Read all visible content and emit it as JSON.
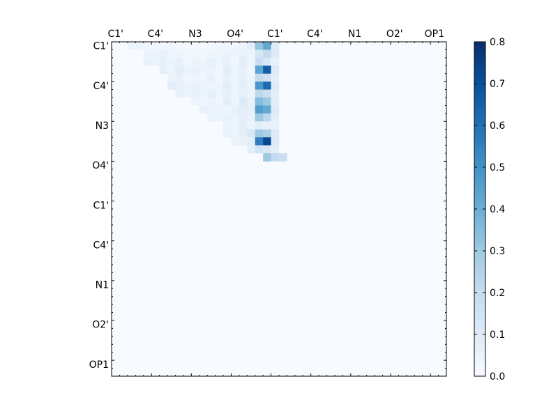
{
  "chart_data": {
    "type": "heatmap",
    "title": "",
    "xlabel": "",
    "ylabel": "",
    "x_tick_labels": [
      "C1'",
      "C4'",
      "N3",
      "O4'",
      "C1'",
      "C4'",
      "N1",
      "O2'",
      "OP1"
    ],
    "y_tick_labels": [
      "C1'",
      "C4'",
      "N3",
      "O4'",
      "C1'",
      "C4'",
      "N1",
      "O2'",
      "OP1"
    ],
    "matrix_size": 42,
    "label_every": 5,
    "colormap": "Blues",
    "colorbar": {
      "vmin": 0.0,
      "vmax": 0.8,
      "ticks": [
        "0.0",
        "0.1",
        "0.2",
        "0.3",
        "0.4",
        "0.5",
        "0.6",
        "0.7",
        "0.8"
      ],
      "placement": "right"
    },
    "grid": false,
    "cells": [
      [
        0,
        2,
        0.04
      ],
      [
        0,
        3,
        0.04
      ],
      [
        0,
        4,
        0.03
      ],
      [
        0,
        5,
        0.03
      ],
      [
        0,
        6,
        0.03
      ],
      [
        0,
        7,
        0.03
      ],
      [
        0,
        8,
        0.02
      ],
      [
        0,
        9,
        0.02
      ],
      [
        0,
        10,
        0.02
      ],
      [
        0,
        11,
        0.02
      ],
      [
        0,
        12,
        0.02
      ],
      [
        0,
        13,
        0.03
      ],
      [
        0,
        14,
        0.03
      ],
      [
        0,
        15,
        0.03
      ],
      [
        0,
        16,
        0.05
      ],
      [
        0,
        17,
        0.08
      ],
      [
        0,
        18,
        0.32
      ],
      [
        0,
        19,
        0.42
      ],
      [
        0,
        20,
        0.1
      ],
      [
        1,
        4,
        0.05
      ],
      [
        1,
        5,
        0.04
      ],
      [
        1,
        6,
        0.06
      ],
      [
        1,
        7,
        0.03
      ],
      [
        1,
        8,
        0.04
      ],
      [
        1,
        9,
        0.02
      ],
      [
        1,
        10,
        0.03
      ],
      [
        1,
        11,
        0.02
      ],
      [
        1,
        12,
        0.04
      ],
      [
        1,
        13,
        0.03
      ],
      [
        1,
        14,
        0.05
      ],
      [
        1,
        15,
        0.04
      ],
      [
        1,
        16,
        0.06
      ],
      [
        1,
        17,
        0.05
      ],
      [
        1,
        18,
        0.14
      ],
      [
        1,
        19,
        0.2
      ],
      [
        1,
        20,
        0.1
      ],
      [
        2,
        4,
        0.06
      ],
      [
        2,
        5,
        0.05
      ],
      [
        2,
        6,
        0.07
      ],
      [
        2,
        7,
        0.04
      ],
      [
        2,
        8,
        0.06
      ],
      [
        2,
        9,
        0.03
      ],
      [
        2,
        10,
        0.05
      ],
      [
        2,
        11,
        0.03
      ],
      [
        2,
        12,
        0.07
      ],
      [
        2,
        13,
        0.04
      ],
      [
        2,
        14,
        0.06
      ],
      [
        2,
        15,
        0.03
      ],
      [
        2,
        16,
        0.08
      ],
      [
        2,
        17,
        0.04
      ],
      [
        2,
        18,
        0.18
      ],
      [
        2,
        19,
        0.12
      ],
      [
        2,
        20,
        0.06
      ],
      [
        3,
        6,
        0.07
      ],
      [
        3,
        7,
        0.04
      ],
      [
        3,
        8,
        0.08
      ],
      [
        3,
        9,
        0.05
      ],
      [
        3,
        10,
        0.06
      ],
      [
        3,
        11,
        0.05
      ],
      [
        3,
        12,
        0.05
      ],
      [
        3,
        13,
        0.03
      ],
      [
        3,
        14,
        0.08
      ],
      [
        3,
        15,
        0.04
      ],
      [
        3,
        16,
        0.06
      ],
      [
        3,
        17,
        0.03
      ],
      [
        3,
        18,
        0.44
      ],
      [
        3,
        19,
        0.66
      ],
      [
        3,
        20,
        0.1
      ],
      [
        4,
        7,
        0.05
      ],
      [
        4,
        8,
        0.06
      ],
      [
        4,
        9,
        0.03
      ],
      [
        4,
        10,
        0.05
      ],
      [
        4,
        11,
        0.03
      ],
      [
        4,
        12,
        0.06
      ],
      [
        4,
        13,
        0.03
      ],
      [
        4,
        14,
        0.06
      ],
      [
        4,
        15,
        0.04
      ],
      [
        4,
        16,
        0.07
      ],
      [
        4,
        17,
        0.04
      ],
      [
        4,
        18,
        0.2
      ],
      [
        4,
        19,
        0.16
      ],
      [
        4,
        20,
        0.08
      ],
      [
        5,
        7,
        0.08
      ],
      [
        5,
        8,
        0.06
      ],
      [
        5,
        9,
        0.05
      ],
      [
        5,
        10,
        0.06
      ],
      [
        5,
        11,
        0.04
      ],
      [
        5,
        12,
        0.05
      ],
      [
        5,
        13,
        0.04
      ],
      [
        5,
        14,
        0.08
      ],
      [
        5,
        15,
        0.04
      ],
      [
        5,
        16,
        0.08
      ],
      [
        5,
        17,
        0.05
      ],
      [
        5,
        18,
        0.48
      ],
      [
        5,
        19,
        0.62
      ],
      [
        5,
        20,
        0.1
      ],
      [
        6,
        8,
        0.07
      ],
      [
        6,
        9,
        0.04
      ],
      [
        6,
        10,
        0.06
      ],
      [
        6,
        11,
        0.04
      ],
      [
        6,
        12,
        0.07
      ],
      [
        6,
        13,
        0.05
      ],
      [
        6,
        14,
        0.06
      ],
      [
        6,
        15,
        0.04
      ],
      [
        6,
        16,
        0.07
      ],
      [
        6,
        17,
        0.05
      ],
      [
        6,
        18,
        0.22
      ],
      [
        6,
        19,
        0.18
      ],
      [
        6,
        20,
        0.08
      ],
      [
        7,
        10,
        0.05
      ],
      [
        7,
        11,
        0.03
      ],
      [
        7,
        12,
        0.05
      ],
      [
        7,
        13,
        0.03
      ],
      [
        7,
        14,
        0.08
      ],
      [
        7,
        15,
        0.04
      ],
      [
        7,
        16,
        0.1
      ],
      [
        7,
        17,
        0.06
      ],
      [
        7,
        18,
        0.35
      ],
      [
        7,
        19,
        0.3
      ],
      [
        7,
        20,
        0.08
      ],
      [
        8,
        11,
        0.06
      ],
      [
        8,
        12,
        0.04
      ],
      [
        8,
        13,
        0.05
      ],
      [
        8,
        14,
        0.04
      ],
      [
        8,
        15,
        0.06
      ],
      [
        8,
        16,
        0.08
      ],
      [
        8,
        17,
        0.06
      ],
      [
        8,
        18,
        0.46
      ],
      [
        8,
        19,
        0.42
      ],
      [
        8,
        20,
        0.1
      ],
      [
        9,
        12,
        0.05
      ],
      [
        9,
        13,
        0.04
      ],
      [
        9,
        14,
        0.06
      ],
      [
        9,
        15,
        0.05
      ],
      [
        9,
        16,
        0.08
      ],
      [
        9,
        17,
        0.06
      ],
      [
        9,
        18,
        0.3
      ],
      [
        9,
        19,
        0.22
      ],
      [
        9,
        20,
        0.08
      ],
      [
        10,
        14,
        0.05
      ],
      [
        10,
        15,
        0.04
      ],
      [
        10,
        16,
        0.08
      ],
      [
        10,
        17,
        0.05
      ],
      [
        10,
        18,
        0.08
      ],
      [
        10,
        19,
        0.06
      ],
      [
        10,
        20,
        0.06
      ],
      [
        11,
        14,
        0.06
      ],
      [
        11,
        15,
        0.05
      ],
      [
        11,
        16,
        0.08
      ],
      [
        11,
        17,
        0.12
      ],
      [
        11,
        18,
        0.3
      ],
      [
        11,
        19,
        0.26
      ],
      [
        11,
        20,
        0.1
      ],
      [
        12,
        15,
        0.05
      ],
      [
        12,
        16,
        0.06
      ],
      [
        12,
        17,
        0.08
      ],
      [
        12,
        18,
        0.56
      ],
      [
        12,
        19,
        0.72
      ],
      [
        12,
        20,
        0.1
      ],
      [
        13,
        17,
        0.08
      ],
      [
        13,
        18,
        0.15
      ],
      [
        13,
        19,
        0.12
      ],
      [
        13,
        20,
        0.08
      ],
      [
        14,
        19,
        0.3
      ],
      [
        14,
        20,
        0.2
      ],
      [
        14,
        21,
        0.18
      ]
    ]
  }
}
